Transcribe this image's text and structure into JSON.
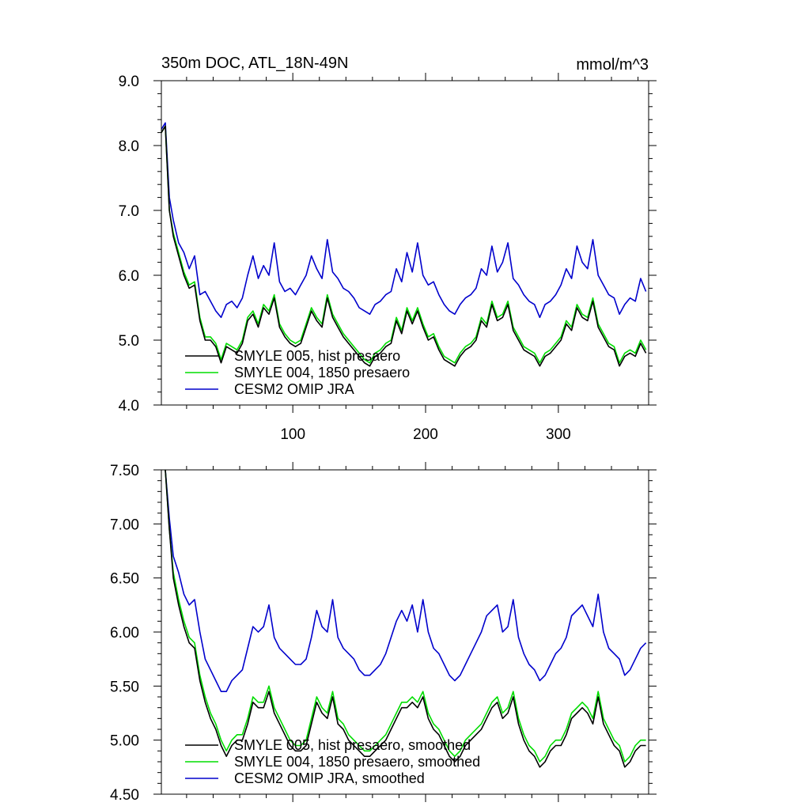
{
  "chart_data": [
    {
      "type": "line",
      "title": "350m DOC, ATL_18N-49N",
      "units": "mmol/m^3",
      "xlim": [
        1,
        368
      ],
      "ylim": [
        4.0,
        9.0
      ],
      "x_ticks": [
        100,
        200,
        300
      ],
      "x_tick_labels": [
        "100",
        "200",
        "300"
      ],
      "y_ticks": [
        4.0,
        5.0,
        6.0,
        7.0,
        8.0,
        9.0
      ],
      "y_tick_labels": [
        "4.0",
        "5.0",
        "6.0",
        "7.0",
        "8.0",
        "9.0"
      ],
      "legend_position": "bottom-left",
      "x": [
        1,
        4,
        7,
        10,
        14,
        18,
        22,
        26,
        30,
        34,
        38,
        42,
        46,
        50,
        54,
        58,
        62,
        66,
        70,
        74,
        78,
        82,
        86,
        90,
        94,
        98,
        102,
        106,
        110,
        114,
        118,
        122,
        126,
        130,
        134,
        138,
        142,
        146,
        150,
        154,
        158,
        162,
        166,
        170,
        174,
        178,
        182,
        186,
        190,
        194,
        198,
        202,
        206,
        210,
        214,
        218,
        222,
        226,
        230,
        234,
        238,
        242,
        246,
        250,
        254,
        258,
        262,
        266,
        270,
        274,
        278,
        282,
        286,
        290,
        294,
        298,
        302,
        306,
        310,
        314,
        318,
        322,
        326,
        330,
        334,
        338,
        342,
        346,
        350,
        354,
        358,
        362,
        366
      ],
      "series": [
        {
          "name": "SMYLE 005, hist presaero",
          "color": "#000000",
          "values": [
            8.2,
            8.3,
            7.0,
            6.6,
            6.3,
            6.0,
            5.8,
            5.85,
            5.3,
            5.0,
            5.0,
            4.9,
            4.65,
            4.9,
            4.85,
            4.8,
            4.95,
            5.3,
            5.4,
            5.2,
            5.5,
            5.4,
            5.65,
            5.2,
            5.05,
            4.95,
            4.9,
            4.95,
            5.2,
            5.45,
            5.3,
            5.2,
            5.65,
            5.35,
            5.2,
            5.05,
            4.95,
            4.85,
            4.75,
            4.65,
            4.6,
            4.75,
            4.8,
            4.9,
            4.95,
            5.3,
            5.1,
            5.45,
            5.25,
            5.45,
            5.2,
            5.0,
            5.05,
            4.85,
            4.7,
            4.65,
            4.6,
            4.75,
            4.85,
            4.9,
            5.0,
            5.3,
            5.2,
            5.55,
            5.3,
            5.35,
            5.55,
            5.15,
            5.0,
            4.85,
            4.8,
            4.75,
            4.6,
            4.75,
            4.8,
            4.9,
            5.0,
            5.25,
            5.15,
            5.5,
            5.35,
            5.3,
            5.6,
            5.2,
            5.05,
            4.9,
            4.85,
            4.6,
            4.75,
            4.8,
            4.75,
            4.95,
            4.8
          ]
        },
        {
          "name": "SMYLE 004, 1850 presaero",
          "color": "#00dd00",
          "values": [
            8.2,
            8.3,
            7.0,
            6.65,
            6.35,
            6.05,
            5.85,
            5.9,
            5.35,
            5.05,
            5.05,
            4.95,
            4.7,
            4.95,
            4.9,
            4.85,
            5.0,
            5.35,
            5.45,
            5.25,
            5.55,
            5.45,
            5.7,
            5.25,
            5.1,
            5.0,
            4.95,
            5.0,
            5.25,
            5.5,
            5.35,
            5.25,
            5.7,
            5.4,
            5.25,
            5.1,
            5.0,
            4.9,
            4.8,
            4.7,
            4.65,
            4.8,
            4.85,
            4.95,
            5.0,
            5.35,
            5.15,
            5.5,
            5.3,
            5.5,
            5.25,
            5.05,
            5.1,
            4.9,
            4.75,
            4.7,
            4.65,
            4.8,
            4.9,
            4.95,
            5.05,
            5.35,
            5.25,
            5.6,
            5.35,
            5.4,
            5.6,
            5.2,
            5.05,
            4.9,
            4.85,
            4.8,
            4.65,
            4.8,
            4.85,
            4.95,
            5.05,
            5.3,
            5.2,
            5.55,
            5.4,
            5.35,
            5.65,
            5.25,
            5.1,
            4.95,
            4.9,
            4.65,
            4.8,
            4.85,
            4.8,
            5.0,
            4.85
          ]
        },
        {
          "name": "CESM2 OMIP JRA",
          "color": "#0000cc",
          "values": [
            8.25,
            8.35,
            7.2,
            6.85,
            6.5,
            6.35,
            6.1,
            6.3,
            5.7,
            5.75,
            5.6,
            5.45,
            5.35,
            5.55,
            5.6,
            5.5,
            5.65,
            6.0,
            6.3,
            5.95,
            6.15,
            6.0,
            6.5,
            5.9,
            5.75,
            5.8,
            5.7,
            5.85,
            6.0,
            6.3,
            6.1,
            5.95,
            6.55,
            6.05,
            5.95,
            5.8,
            5.75,
            5.65,
            5.5,
            5.45,
            5.4,
            5.55,
            5.6,
            5.7,
            5.75,
            6.1,
            5.9,
            6.35,
            6.05,
            6.5,
            6.0,
            5.85,
            5.9,
            5.7,
            5.55,
            5.45,
            5.4,
            5.55,
            5.65,
            5.7,
            5.8,
            6.1,
            6.0,
            6.45,
            6.05,
            6.2,
            6.5,
            5.95,
            5.85,
            5.7,
            5.6,
            5.55,
            5.35,
            5.55,
            5.6,
            5.7,
            5.85,
            6.1,
            5.95,
            6.45,
            6.2,
            6.1,
            6.55,
            6.0,
            5.85,
            5.7,
            5.65,
            5.4,
            5.55,
            5.65,
            5.6,
            5.95,
            5.75
          ]
        }
      ]
    },
    {
      "type": "line",
      "title": "",
      "xlim": [
        1,
        368
      ],
      "ylim": [
        4.5,
        7.5
      ],
      "x_ticks": [
        100,
        200,
        300
      ],
      "x_tick_labels": [],
      "y_ticks": [
        4.5,
        5.0,
        5.5,
        6.0,
        6.5,
        7.0,
        7.5
      ],
      "y_tick_labels": [
        "4.50",
        "5.00",
        "5.50",
        "6.00",
        "6.50",
        "7.00",
        "7.50"
      ],
      "legend_position": "bottom-left",
      "x": [
        4,
        7,
        10,
        14,
        18,
        22,
        26,
        30,
        34,
        38,
        42,
        46,
        50,
        54,
        58,
        62,
        66,
        70,
        74,
        78,
        82,
        86,
        90,
        94,
        98,
        102,
        106,
        110,
        114,
        118,
        122,
        126,
        130,
        134,
        138,
        142,
        146,
        150,
        154,
        158,
        162,
        166,
        170,
        174,
        178,
        182,
        186,
        190,
        194,
        198,
        202,
        206,
        210,
        214,
        218,
        222,
        226,
        230,
        234,
        238,
        242,
        246,
        250,
        254,
        258,
        262,
        266,
        270,
        274,
        278,
        282,
        286,
        290,
        294,
        298,
        302,
        306,
        310,
        314,
        318,
        322,
        326,
        330,
        334,
        338,
        342,
        346,
        350,
        354,
        358,
        362,
        366
      ],
      "series": [
        {
          "name": "SMYLE 005, hist presaero, smoothed",
          "color": "#000000",
          "values": [
            7.5,
            6.95,
            6.5,
            6.25,
            6.05,
            5.9,
            5.85,
            5.55,
            5.35,
            5.2,
            5.1,
            4.95,
            4.85,
            4.95,
            5.0,
            5.0,
            5.15,
            5.35,
            5.3,
            5.3,
            5.45,
            5.25,
            5.15,
            5.05,
            4.95,
            4.9,
            4.9,
            4.95,
            5.15,
            5.35,
            5.25,
            5.2,
            5.4,
            5.15,
            5.1,
            5.0,
            4.95,
            4.9,
            4.85,
            4.85,
            4.9,
            4.95,
            5.0,
            5.1,
            5.2,
            5.3,
            5.3,
            5.35,
            5.3,
            5.4,
            5.2,
            5.1,
            5.05,
            4.95,
            4.85,
            4.8,
            4.85,
            4.95,
            5.0,
            5.05,
            5.1,
            5.2,
            5.3,
            5.35,
            5.2,
            5.25,
            5.4,
            5.15,
            5.0,
            4.9,
            4.85,
            4.75,
            4.8,
            4.9,
            4.95,
            4.95,
            5.05,
            5.2,
            5.25,
            5.3,
            5.25,
            5.15,
            5.4,
            5.15,
            5.05,
            4.95,
            4.9,
            4.75,
            4.8,
            4.9,
            4.95,
            4.95
          ]
        },
        {
          "name": "SMYLE 004, 1850 presaero, smoothed",
          "color": "#00dd00",
          "values": [
            7.5,
            6.95,
            6.55,
            6.3,
            6.1,
            5.95,
            5.9,
            5.6,
            5.4,
            5.25,
            5.15,
            5.0,
            4.9,
            5.0,
            5.05,
            5.05,
            5.2,
            5.4,
            5.35,
            5.35,
            5.5,
            5.3,
            5.2,
            5.1,
            5.0,
            4.95,
            4.95,
            5.0,
            5.2,
            5.4,
            5.3,
            5.25,
            5.45,
            5.2,
            5.15,
            5.05,
            5.0,
            4.95,
            4.9,
            4.9,
            4.95,
            5.0,
            5.05,
            5.15,
            5.25,
            5.35,
            5.35,
            5.4,
            5.35,
            5.45,
            5.25,
            5.15,
            5.1,
            5.0,
            4.9,
            4.85,
            4.9,
            5.0,
            5.05,
            5.1,
            5.15,
            5.25,
            5.35,
            5.4,
            5.25,
            5.3,
            5.45,
            5.2,
            5.05,
            4.95,
            4.9,
            4.8,
            4.85,
            4.95,
            5.0,
            5.0,
            5.1,
            5.25,
            5.3,
            5.35,
            5.3,
            5.2,
            5.45,
            5.2,
            5.1,
            5.0,
            4.95,
            4.8,
            4.85,
            4.95,
            5.0,
            5.0
          ]
        },
        {
          "name": "CESM2 OMIP JRA, smoothed",
          "color": "#0000cc",
          "values": [
            7.5,
            7.05,
            6.7,
            6.55,
            6.35,
            6.25,
            6.3,
            6.0,
            5.75,
            5.65,
            5.55,
            5.45,
            5.45,
            5.55,
            5.6,
            5.65,
            5.85,
            6.05,
            6.0,
            6.05,
            6.25,
            5.95,
            5.85,
            5.8,
            5.75,
            5.7,
            5.7,
            5.75,
            5.95,
            6.2,
            6.05,
            6.0,
            6.3,
            5.95,
            5.85,
            5.8,
            5.75,
            5.65,
            5.6,
            5.6,
            5.65,
            5.7,
            5.8,
            5.95,
            6.1,
            6.2,
            6.1,
            6.25,
            6.0,
            6.3,
            6.0,
            5.85,
            5.8,
            5.7,
            5.6,
            5.55,
            5.6,
            5.7,
            5.8,
            5.9,
            6.0,
            6.15,
            6.2,
            6.25,
            6.0,
            6.05,
            6.3,
            5.95,
            5.8,
            5.7,
            5.65,
            5.55,
            5.6,
            5.7,
            5.8,
            5.85,
            5.95,
            6.15,
            6.2,
            6.25,
            6.15,
            6.05,
            6.35,
            6.0,
            5.85,
            5.8,
            5.75,
            5.6,
            5.65,
            5.75,
            5.85,
            5.9
          ]
        }
      ]
    }
  ]
}
